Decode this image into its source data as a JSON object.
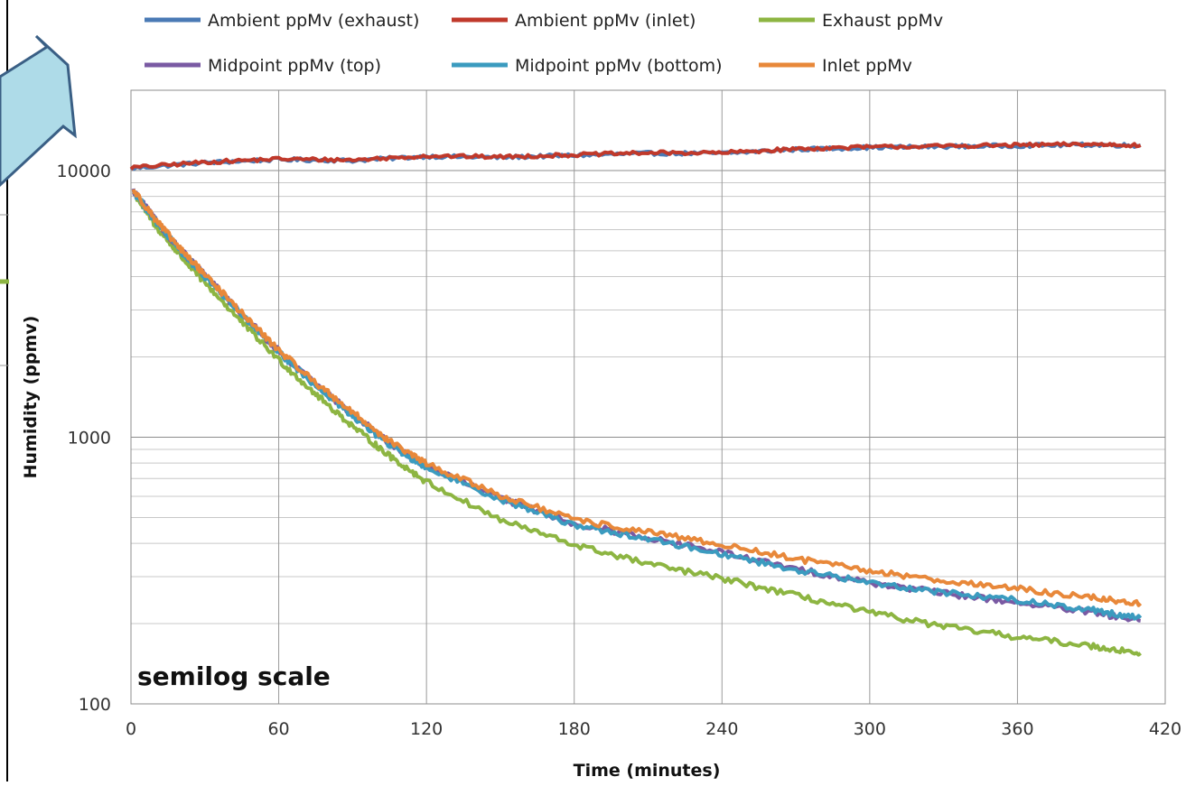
{
  "chart_data": {
    "type": "line",
    "xlabel": "Time (minutes)",
    "ylabel": "Humidity (ppmv)",
    "xlim": [
      0,
      420
    ],
    "ylim": [
      100,
      20000
    ],
    "yscale": "log",
    "x_ticks": [
      0,
      60,
      120,
      180,
      240,
      300,
      360,
      420
    ],
    "y_ticks": [
      100,
      1000,
      10000
    ],
    "grid": true,
    "legend_position": "top",
    "annotation": "semilog scale",
    "series": [
      {
        "name": "Ambient ppMv (exhaust)",
        "color": "#4a7ab5",
        "x": [
          0,
          30,
          60,
          90,
          120,
          150,
          180,
          210,
          240,
          270,
          300,
          330,
          360,
          390,
          410
        ],
        "y": [
          10200,
          10700,
          11000,
          10900,
          11300,
          11200,
          11400,
          11600,
          11600,
          12000,
          12200,
          12300,
          12400,
          12500,
          12400
        ]
      },
      {
        "name": "Ambient ppMv (inlet)",
        "color": "#c0392b",
        "x": [
          0,
          30,
          60,
          90,
          120,
          150,
          180,
          210,
          240,
          270,
          300,
          330,
          360,
          390,
          410
        ],
        "y": [
          10250,
          10750,
          11050,
          10950,
          11350,
          11250,
          11450,
          11650,
          11650,
          12050,
          12250,
          12350,
          12450,
          12550,
          12450
        ]
      },
      {
        "name": "Exhaust ppMv",
        "color": "#8db542",
        "x": [
          1,
          10,
          20,
          30,
          45,
          60,
          75,
          90,
          105,
          120,
          150,
          180,
          210,
          240,
          270,
          300,
          330,
          360,
          390,
          410
        ],
        "y": [
          8300,
          6200,
          4800,
          3800,
          2700,
          1950,
          1450,
          1100,
          850,
          680,
          490,
          395,
          335,
          295,
          255,
          220,
          195,
          178,
          165,
          155
        ]
      },
      {
        "name": "Midpoint ppMv (top)",
        "color": "#7a5aa3",
        "x": [
          1,
          10,
          20,
          30,
          45,
          60,
          75,
          90,
          105,
          120,
          150,
          180,
          210,
          240,
          270,
          300,
          330,
          360,
          390,
          410
        ],
        "y": [
          8400,
          6500,
          5050,
          4050,
          2900,
          2100,
          1580,
          1220,
          950,
          780,
          590,
          475,
          420,
          370,
          320,
          285,
          260,
          240,
          220,
          205
        ]
      },
      {
        "name": "Midpoint ppMv (bottom)",
        "color": "#3b9bbf",
        "x": [
          1,
          10,
          20,
          30,
          45,
          60,
          75,
          90,
          105,
          120,
          150,
          180,
          210,
          240,
          270,
          300,
          330,
          360,
          390,
          410
        ],
        "y": [
          8350,
          6450,
          5000,
          4000,
          2870,
          2080,
          1560,
          1200,
          935,
          770,
          585,
          470,
          415,
          365,
          318,
          285,
          262,
          245,
          225,
          210
        ]
      },
      {
        "name": "Inlet ppMv",
        "color": "#e8883a",
        "x": [
          1,
          10,
          20,
          30,
          45,
          60,
          75,
          90,
          105,
          120,
          150,
          180,
          210,
          240,
          270,
          300,
          330,
          360,
          390,
          410
        ],
        "y": [
          8450,
          6550,
          5080,
          4080,
          2920,
          2120,
          1600,
          1240,
          965,
          795,
          605,
          490,
          440,
          395,
          350,
          315,
          290,
          270,
          250,
          238
        ]
      }
    ]
  }
}
